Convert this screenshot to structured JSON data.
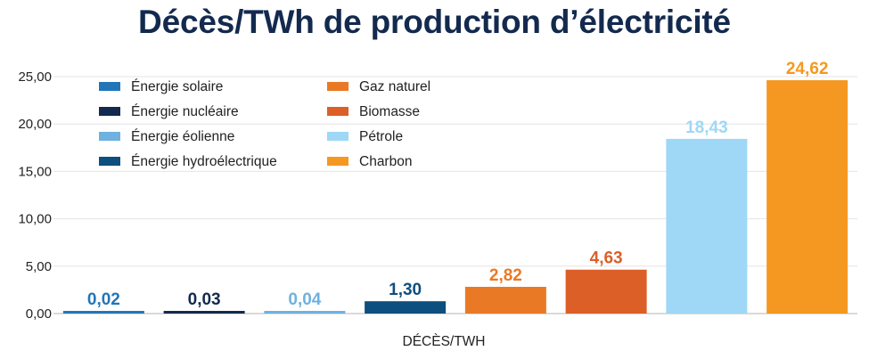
{
  "chart_data": {
    "type": "bar",
    "title": "Décès/TWh de production d’électricité",
    "xlabel": "DÉCÈS/TWH",
    "ylabel": "",
    "ylim": [
      0,
      25
    ],
    "yticks": [
      "0,00",
      "5,00",
      "10,00",
      "15,00",
      "20,00",
      "25,00"
    ],
    "grid": true,
    "legend_position": "top-left",
    "series": [
      {
        "name": "Énergie solaire",
        "value": 0.02,
        "label": "0,02",
        "color": "#2276b8",
        "label_color": "#2276b8"
      },
      {
        "name": "Énergie nucléaire",
        "value": 0.03,
        "label": "0,03",
        "color": "#132a4e",
        "label_color": "#132a4e"
      },
      {
        "name": "Énergie éolienne",
        "value": 0.04,
        "label": "0,04",
        "color": "#6fb1e0",
        "label_color": "#6fb1e0"
      },
      {
        "name": "Énergie hydroélectrique",
        "value": 1.3,
        "label": "1,30",
        "color": "#0d4f7f",
        "label_color": "#0d4f7f"
      },
      {
        "name": "Gaz naturel",
        "value": 2.82,
        "label": "2,82",
        "color": "#ea7925",
        "label_color": "#ea7925"
      },
      {
        "name": "Biomasse",
        "value": 4.63,
        "label": "4,63",
        "color": "#db5f27",
        "label_color": "#db5f27"
      },
      {
        "name": "Pétrole",
        "value": 18.43,
        "label": "18,43",
        "color": "#9ed8f6",
        "label_color": "#9ed8f6"
      },
      {
        "name": "Charbon",
        "value": 24.62,
        "label": "24,62",
        "color": "#f59821",
        "label_color": "#f59821"
      }
    ]
  }
}
